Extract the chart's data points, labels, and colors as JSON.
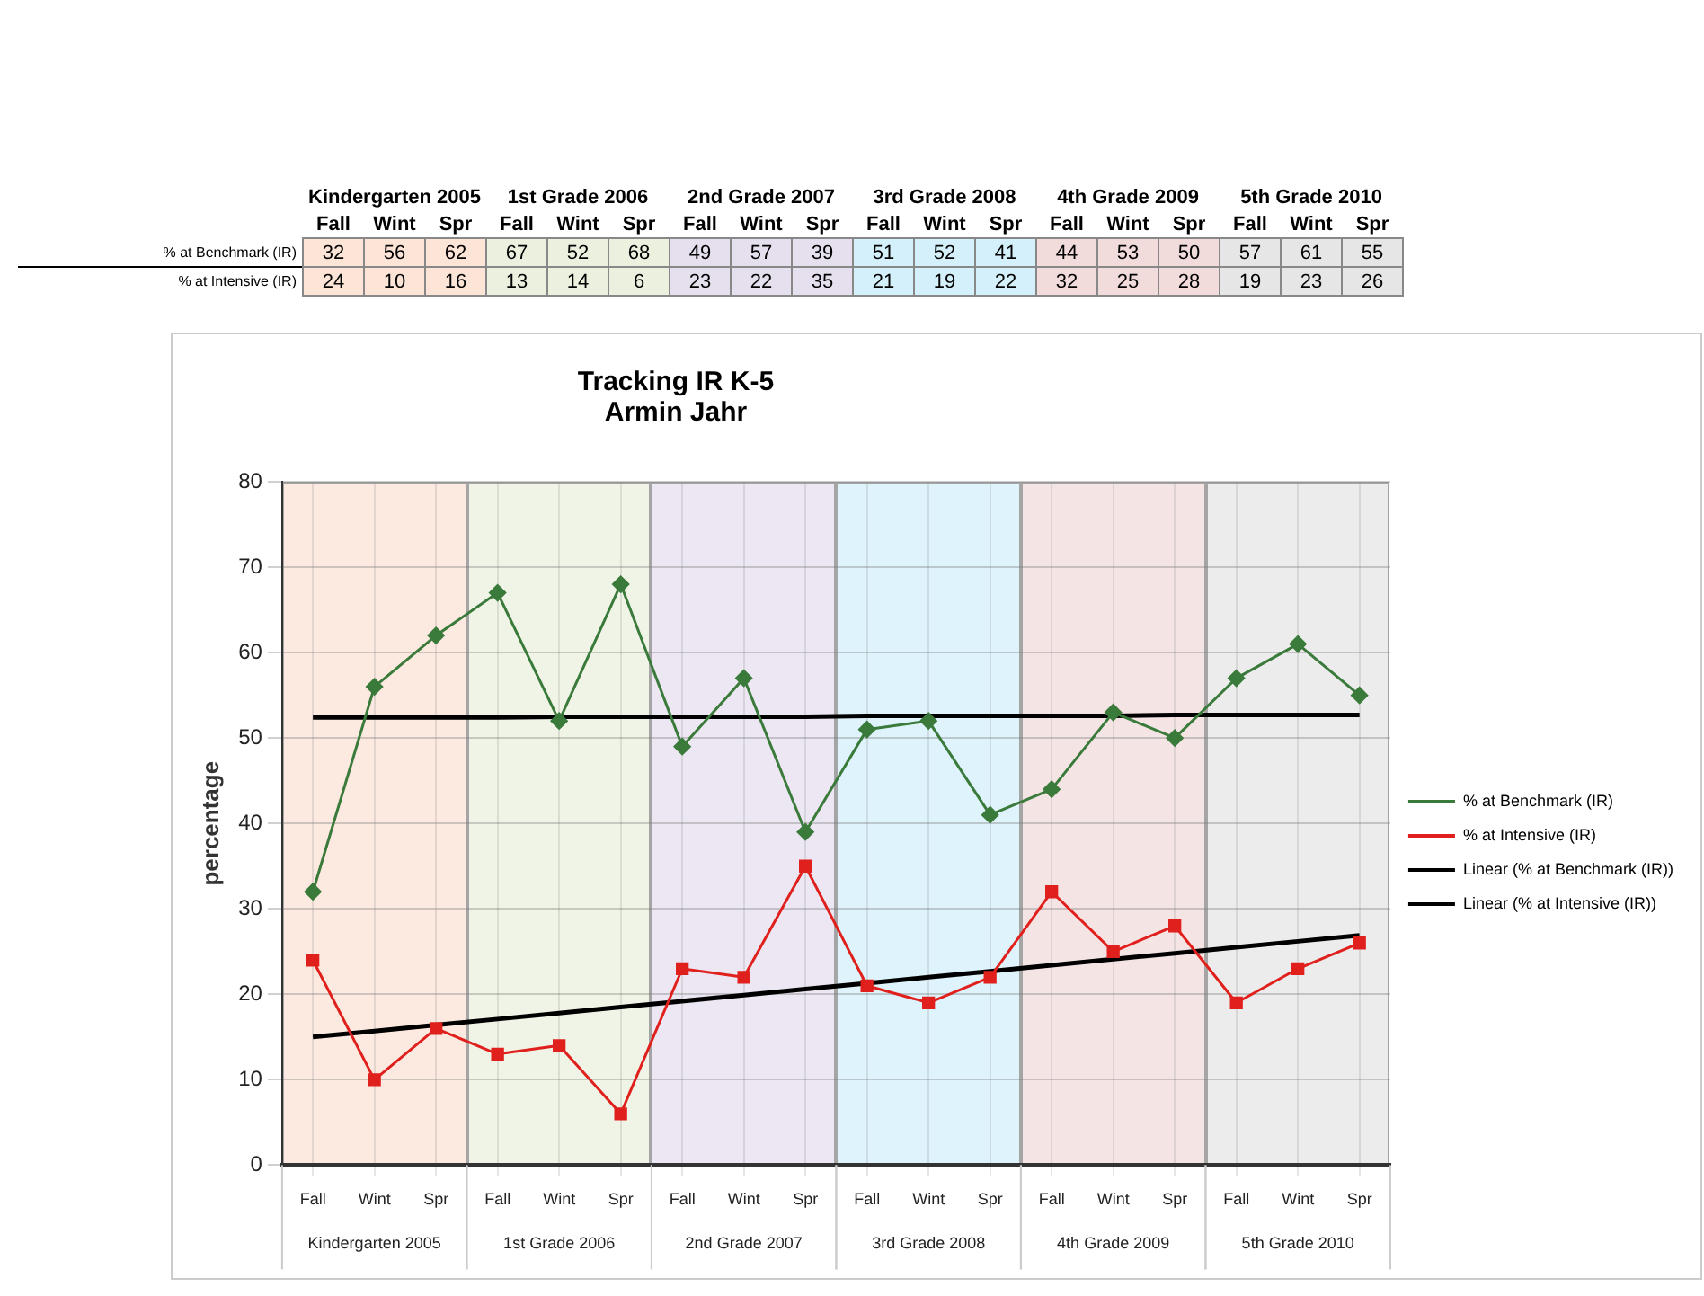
{
  "chart_data": {
    "type": "line",
    "title": "Tracking IR K-5",
    "subtitle": "Armin Jahr",
    "ylabel": "percentage",
    "categories": [
      "Fall",
      "Wint",
      "Spr",
      "Fall",
      "Wint",
      "Spr",
      "Fall",
      "Wint",
      "Spr",
      "Fall",
      "Wint",
      "Spr",
      "Fall",
      "Wint",
      "Spr",
      "Fall",
      "Wint",
      "Spr"
    ],
    "ylim": [
      0,
      80
    ],
    "yticks": [
      0,
      10,
      20,
      30,
      40,
      50,
      60,
      70,
      80
    ],
    "series": [
      {
        "name": "% at Benchmark (IR)",
        "color": "#3a7a3a",
        "marker": "diamond",
        "values": [
          32,
          56,
          62,
          67,
          52,
          68,
          49,
          57,
          39,
          51,
          52,
          41,
          44,
          53,
          50,
          57,
          61,
          55
        ],
        "value_labels": [
          "32",
          "56",
          "62",
          "67",
          "52",
          "68",
          "49",
          "57",
          "39",
          "51",
          "52",
          "41",
          "44",
          "53",
          "50",
          "57",
          "61",
          "55"
        ]
      },
      {
        "name": "% at Intensive (IR)",
        "color": "#e0201c",
        "marker": "square",
        "values": [
          24,
          10,
          16,
          13,
          14,
          6,
          23,
          22,
          35,
          21,
          19,
          22,
          32,
          25,
          28,
          19,
          23,
          26
        ],
        "value_labels": [
          "24",
          "10",
          "16",
          "13",
          "14",
          "6",
          "23",
          "22",
          "35",
          "21",
          "19",
          "22",
          "32",
          "25",
          "28",
          "19",
          "23",
          "26"
        ]
      },
      {
        "name": "Linear (% at Benchmark (IR))",
        "color": "#000000",
        "marker": "none",
        "values": [
          52.4,
          52.4,
          52.4,
          52.4,
          52.5,
          52.5,
          52.5,
          52.5,
          52.5,
          52.6,
          52.6,
          52.6,
          52.6,
          52.6,
          52.7,
          52.7,
          52.7,
          52.7
        ]
      },
      {
        "name": "Linear (% at Intensive (IR))",
        "color": "#000000",
        "marker": "none",
        "values": [
          15,
          15.7,
          16.4,
          17.1,
          17.8,
          18.5,
          19.2,
          19.9,
          20.6,
          21.3,
          22.0,
          22.7,
          23.4,
          24.1,
          24.8,
          25.5,
          26.2,
          26.9
        ]
      }
    ],
    "annotations": [
      "Kindergarten 2005",
      "1st Grade 2006",
      "2nd Grade 2007",
      "3rd Grade 2008",
      "4th Grade 2009",
      "5th Grade 2010"
    ],
    "grid": true,
    "legend": "right",
    "line_style": "solid"
  }
}
